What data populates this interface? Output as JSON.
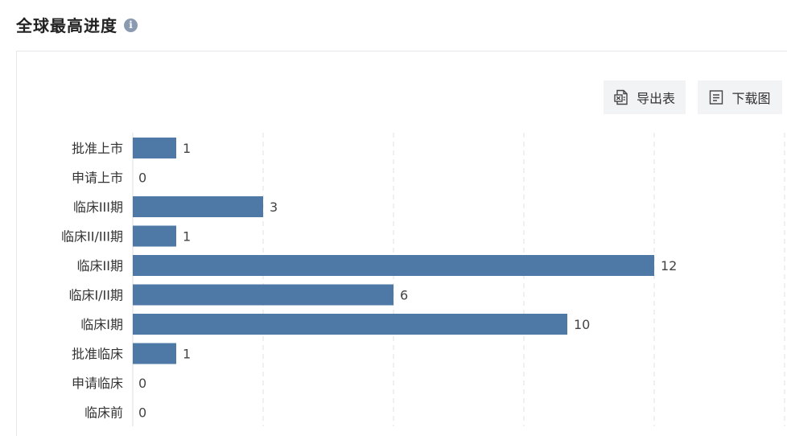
{
  "header": {
    "title": "全球最高进度",
    "info_icon": "info-icon"
  },
  "toolbar": {
    "export_label": "导出表",
    "export_icon": "excel-export-icon",
    "download_label": "下载图",
    "download_icon": "document-icon"
  },
  "chart_data": {
    "type": "bar",
    "orientation": "horizontal",
    "categories": [
      "批准上市",
      "申请上市",
      "临床III期",
      "临床II/III期",
      "临床II期",
      "临床I/II期",
      "临床I期",
      "批准临床",
      "申请临床",
      "临床前"
    ],
    "values": [
      1,
      0,
      3,
      1,
      12,
      6,
      10,
      1,
      0,
      0
    ],
    "xlim": [
      0,
      15
    ],
    "x_gridlines": [
      3,
      6,
      9,
      12,
      15
    ],
    "grid": "vertical dashed",
    "bar_color": "#4e79a7",
    "title": "",
    "xlabel": "",
    "ylabel": ""
  }
}
